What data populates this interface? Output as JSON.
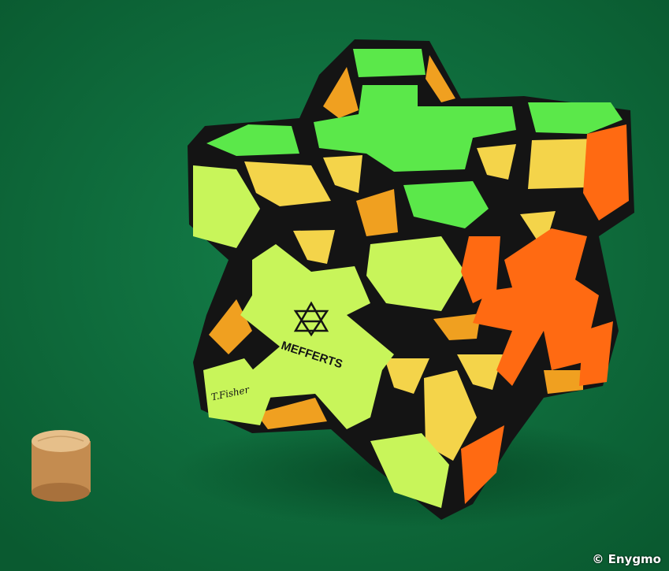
{
  "photo": {
    "subject": "Meffert's Hexaminx-style star puzzle on green felt with a small wooden peg",
    "colors": {
      "felt": "#0f6b3c",
      "green": "#5be84a",
      "lime": "#c8f55a",
      "yellow": "#f4d44a",
      "orange": "#ff6a12",
      "amber": "#f0a020",
      "body": "#141414",
      "wood": "#d9a86a"
    }
  },
  "logo": {
    "brand": "MEFFERTS",
    "signature": "T.Fisher"
  },
  "credit": "© Enygmo"
}
